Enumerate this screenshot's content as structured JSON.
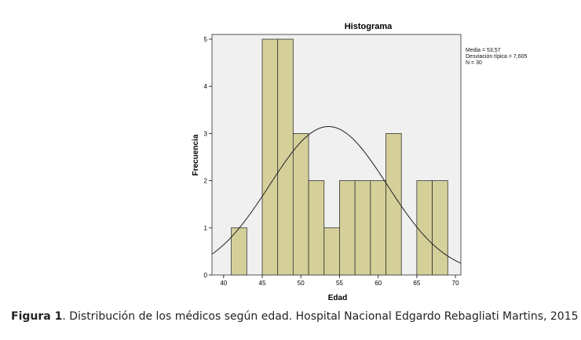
{
  "chart_data": {
    "type": "bar",
    "title": "Histograma",
    "xlabel": "Edad",
    "ylabel": "Frecuencia",
    "xlim": [
      38.5,
      70.7
    ],
    "ylim": [
      0,
      5.1
    ],
    "xticks": [
      40,
      45,
      50,
      55,
      60,
      65,
      70
    ],
    "yticks": [
      0,
      1,
      2,
      3,
      4,
      5
    ],
    "bin_width": 2,
    "bins": [
      {
        "start": 41,
        "end": 43,
        "count": 1
      },
      {
        "start": 43,
        "end": 45,
        "count": 0
      },
      {
        "start": 45,
        "end": 47,
        "count": 5
      },
      {
        "start": 47,
        "end": 49,
        "count": 5
      },
      {
        "start": 49,
        "end": 51,
        "count": 3
      },
      {
        "start": 51,
        "end": 53,
        "count": 2
      },
      {
        "start": 53,
        "end": 55,
        "count": 1
      },
      {
        "start": 55,
        "end": 57,
        "count": 2
      },
      {
        "start": 57,
        "end": 59,
        "count": 2
      },
      {
        "start": 59,
        "end": 61,
        "count": 2
      },
      {
        "start": 61,
        "end": 63,
        "count": 3
      },
      {
        "start": 63,
        "end": 65,
        "count": 0
      },
      {
        "start": 65,
        "end": 67,
        "count": 2
      },
      {
        "start": 67,
        "end": 69,
        "count": 2
      }
    ],
    "normal_curve": {
      "mean": 53.57,
      "sd": 7.605,
      "n": 30
    },
    "stats_lines": [
      "Media = 53,57",
      "Desviación típica = 7,605",
      "N = 30"
    ],
    "grid": false,
    "colors": {
      "bar": "#d5d09a",
      "plot_bg": "#f0f0f0"
    }
  },
  "caption": {
    "label": "Figura 1",
    "text": ". Distribución de los médicos según edad. Hospital Nacional Edgardo Rebagliati Martins, 2015"
  }
}
